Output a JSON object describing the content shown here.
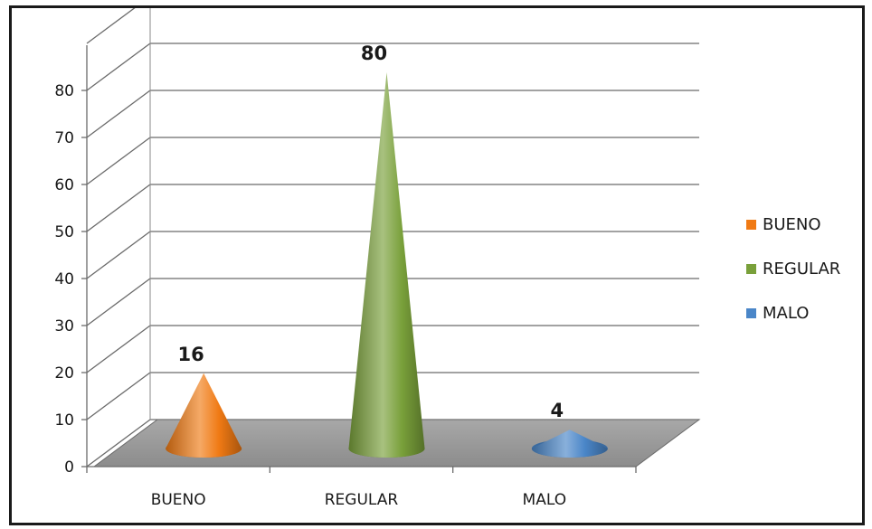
{
  "chart_data": {
    "type": "bar",
    "style": "3d-cone",
    "categories": [
      "BUENO",
      "REGULAR",
      "MALO"
    ],
    "values": [
      16,
      80,
      4
    ],
    "data_labels": [
      "16",
      "80",
      "4"
    ],
    "colors": [
      "#f07a14",
      "#79a03a",
      "#4a86c8"
    ],
    "ylim": [
      0,
      90
    ],
    "yticks": [
      0,
      10,
      20,
      30,
      40,
      50,
      60,
      70,
      80
    ],
    "grid": true,
    "legend": {
      "position": "right",
      "entries": [
        "BUENO",
        "REGULAR",
        "MALO"
      ]
    },
    "title": "",
    "xlabel": "",
    "ylabel": ""
  }
}
